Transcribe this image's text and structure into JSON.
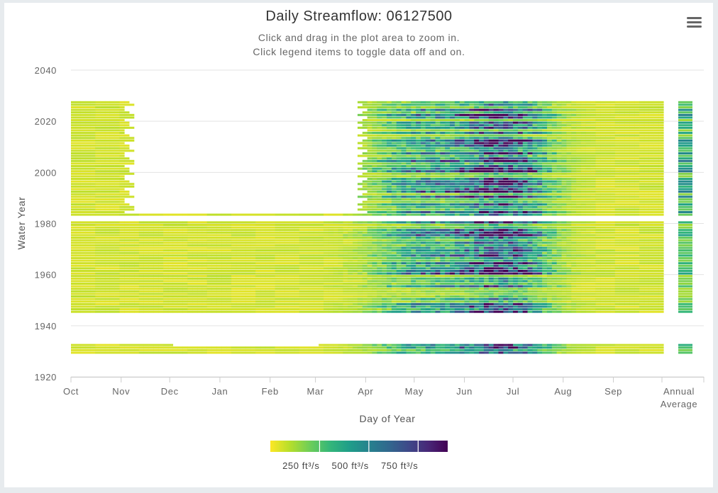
{
  "chart_data": {
    "type": "heatmap",
    "title": "Daily Streamflow: 06127500",
    "subtitle_lines": [
      "Click and drag in the plot area to zoom in.",
      "Click legend items to toggle data off and on."
    ],
    "xlabel": "Day of Year",
    "ylabel": "Water Year",
    "x_ticks": [
      "Oct",
      "Nov",
      "Dec",
      "Jan",
      "Feb",
      "Mar",
      "Apr",
      "May",
      "Jun",
      "Jul",
      "Aug",
      "Sep"
    ],
    "extra_column_label": [
      "Annual",
      "Average"
    ],
    "ylim": [
      1920,
      2040
    ],
    "y_ticks": [
      2040,
      2020,
      2000,
      1980,
      1960,
      1940,
      1920
    ],
    "color_scale": {
      "name": "viridis",
      "min": 0,
      "max": 900,
      "colors": [
        "#fde725",
        "#b5de2b",
        "#6ece58",
        "#35b779",
        "#1f9e89",
        "#26828e",
        "#31688e",
        "#3e4989",
        "#482878",
        "#440154"
      ],
      "legend_labels": [
        "250 ft³/s",
        "500 ft³/s",
        "750 ft³/s"
      ],
      "legend_values": [
        250,
        500,
        750
      ]
    },
    "data_coverage": [
      {
        "years": [
          1929,
          1932
        ],
        "days": "full year (Dec–Feb gap in 1932)"
      },
      {
        "years": [
          1945,
          1980
        ],
        "days": "full year"
      },
      {
        "years": [
          1981,
          2027
        ],
        "days": "Apr–Sep seasonal record (Oct–Oct 31 partial)"
      },
      {
        "years": [
          1983,
          1983
        ],
        "days": "full year"
      }
    ],
    "peak_flow_months": [
      "May",
      "Jun",
      "Jul"
    ],
    "grid": true,
    "legend_position": "bottom"
  }
}
